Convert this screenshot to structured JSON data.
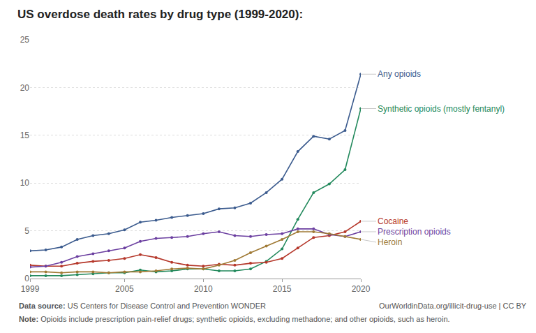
{
  "chart_data": {
    "type": "line",
    "title": "US overdose death rates by drug type (1999-2020):",
    "x": [
      1999,
      2000,
      2001,
      2002,
      2003,
      2004,
      2005,
      2006,
      2007,
      2008,
      2009,
      2010,
      2011,
      2012,
      2013,
      2014,
      2015,
      2016,
      2017,
      2018,
      2019,
      2020
    ],
    "xlim": [
      1999,
      2020
    ],
    "xticks": [
      1999,
      2005,
      2010,
      2015,
      2020
    ],
    "ylim": [
      0,
      25
    ],
    "yticks": [
      0,
      5,
      10,
      15,
      20,
      25
    ],
    "grid": true,
    "marker": "circle",
    "series": [
      {
        "name": "Any opioids",
        "color": "#3b5b8e",
        "values": [
          2.9,
          3.0,
          3.3,
          4.1,
          4.5,
          4.7,
          5.1,
          5.9,
          6.1,
          6.4,
          6.6,
          6.8,
          7.3,
          7.4,
          7.9,
          9.0,
          10.4,
          13.3,
          14.9,
          14.6,
          15.5,
          21.4
        ]
      },
      {
        "name": "Synthetic opioids (mostly fentanyl)",
        "color": "#22895c",
        "values": [
          0.3,
          0.3,
          0.3,
          0.4,
          0.5,
          0.6,
          0.6,
          0.9,
          0.7,
          0.8,
          1.0,
          1.0,
          0.8,
          0.8,
          1.0,
          1.8,
          3.1,
          6.2,
          9.0,
          9.9,
          11.4,
          17.8
        ]
      },
      {
        "name": "Cocaine",
        "color": "#b5372a",
        "values": [
          1.4,
          1.3,
          1.3,
          1.6,
          1.8,
          1.9,
          2.1,
          2.5,
          2.2,
          1.7,
          1.4,
          1.3,
          1.5,
          1.4,
          1.6,
          1.7,
          2.1,
          3.2,
          4.3,
          4.5,
          4.9,
          6.0
        ]
      },
      {
        "name": "Prescription opioids",
        "color": "#6b3fa0",
        "values": [
          1.2,
          1.3,
          1.7,
          2.3,
          2.6,
          2.9,
          3.2,
          3.9,
          4.2,
          4.3,
          4.4,
          4.7,
          4.9,
          4.5,
          4.4,
          4.6,
          4.7,
          5.2,
          5.2,
          4.6,
          4.4,
          4.9
        ]
      },
      {
        "name": "Heroin",
        "color": "#a07a35",
        "values": [
          0.7,
          0.7,
          0.6,
          0.7,
          0.7,
          0.6,
          0.7,
          0.7,
          0.8,
          1.0,
          1.1,
          1.0,
          1.4,
          1.9,
          2.7,
          3.4,
          4.1,
          4.9,
          4.9,
          4.7,
          4.4,
          4.1
        ]
      }
    ],
    "source": "Data source: US Centers for Disease Control and Prevention WONDER",
    "credit": "OurWorldinData.org/illicit-drug-use | CC BY",
    "note": "Note: Opioids include prescription pain-relief drugs; synthetic opioids, excluding methadone; and other opioids, such as heroin."
  }
}
